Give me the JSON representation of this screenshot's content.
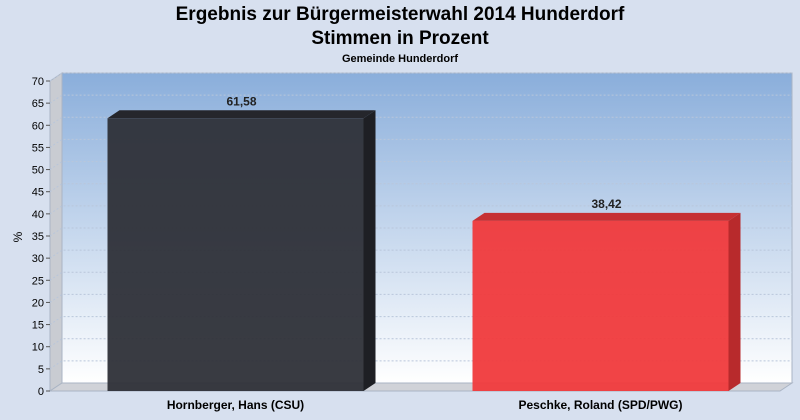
{
  "chart_data": {
    "type": "bar",
    "title": "Ergebnis zur Bürgermeisterwahl 2014 Hunderdorf",
    "title_line2": "Stimmen in Prozent",
    "subtitle": "Gemeinde Hunderdorf",
    "ylabel": "%",
    "ylim": [
      0,
      70
    ],
    "yticks": [
      0,
      5,
      10,
      15,
      20,
      25,
      30,
      35,
      40,
      45,
      50,
      55,
      60,
      65,
      70
    ],
    "grid": true,
    "categories": [
      "Hornberger, Hans (CSU)",
      "Peschke, Roland (SPD/PWG)"
    ],
    "values": [
      61.58,
      38.42
    ],
    "value_labels": [
      "61,58",
      "38,42"
    ],
    "colors": [
      "#2e3038",
      "#f03a3c"
    ],
    "bar_side_colors": [
      "#1e1f24",
      "#b82a2c"
    ],
    "bar_top_colors": [
      "#25262c",
      "#c63033"
    ]
  }
}
